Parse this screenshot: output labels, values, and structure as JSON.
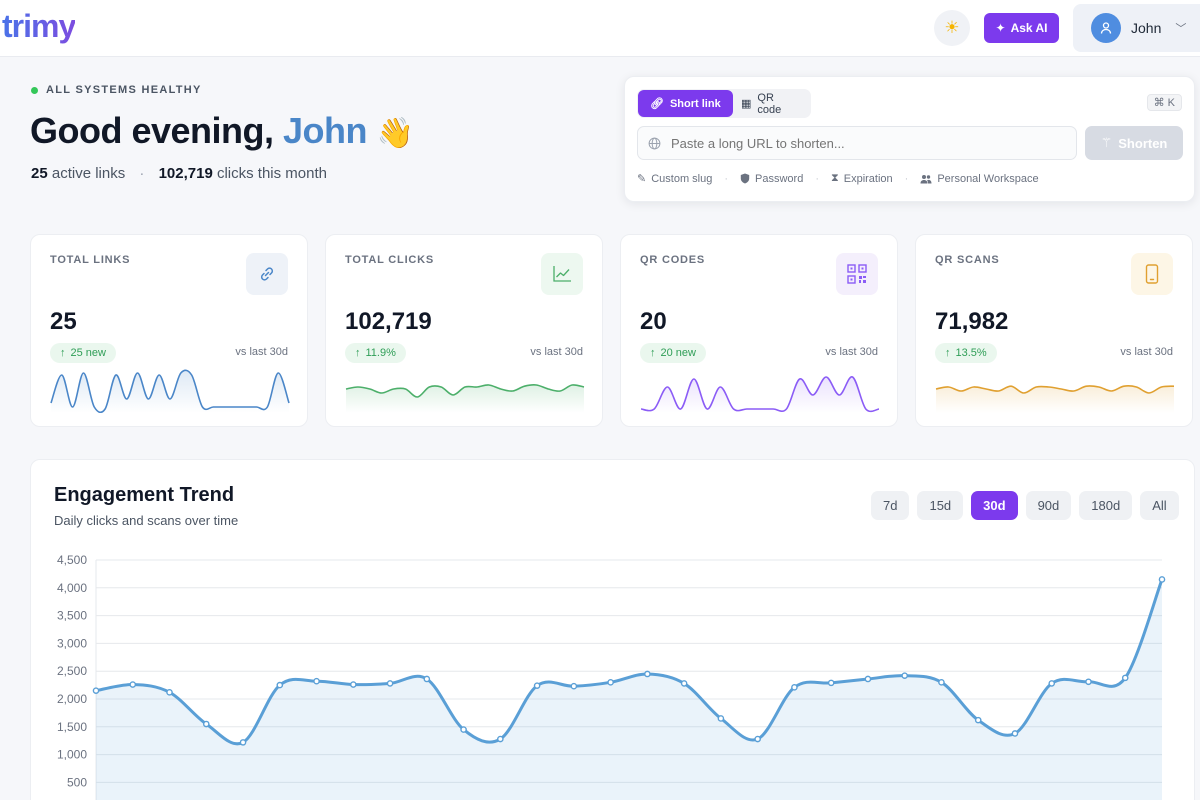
{
  "header": {
    "logo": "trimy",
    "ask_ai_label": "Ask AI",
    "user_name": "John"
  },
  "greeting": {
    "status": "ALL SYSTEMS HEALTHY",
    "prefix": "Good evening,",
    "name": "John",
    "wave": "👋",
    "active_links_count": "25",
    "active_links_label": "active links",
    "separator": "·",
    "clicks_count": "102,719",
    "clicks_label": "clicks this month"
  },
  "shortener": {
    "tabs": [
      {
        "label": "Short link",
        "active": true
      },
      {
        "label": "QR code",
        "active": false
      }
    ],
    "shortcut": "⌘ K",
    "placeholder": "Paste a long URL to shorten...",
    "submit_label": "Shorten",
    "options": [
      {
        "label": "Custom slug",
        "icon": "pencil-icon"
      },
      {
        "label": "Password",
        "icon": "shield-icon"
      },
      {
        "label": "Expiration",
        "icon": "hourglass-icon"
      },
      {
        "label": "Personal Workspace",
        "icon": "users-icon"
      }
    ],
    "option_separator": "·"
  },
  "stats": [
    {
      "label": "TOTAL LINKS",
      "value": "25",
      "delta": "25 new",
      "vs": "vs last 30d",
      "icon": "link-icon",
      "color": "#4a86c8",
      "spark": [
        0.2,
        0.9,
        0.1,
        0.95,
        0.1,
        0.05,
        0.9,
        0.3,
        0.95,
        0.3,
        0.9,
        0.3,
        0.95,
        0.9,
        0.1,
        0.1,
        0.1,
        0.1,
        0.1,
        0.1,
        0.1,
        0.95,
        0.2
      ]
    },
    {
      "label": "TOTAL CLICKS",
      "value": "102,719",
      "delta": "11.9%",
      "vs": "vs last 30d",
      "icon": "chart-line-icon",
      "color": "#4caf6a",
      "spark": [
        0.55,
        0.6,
        0.55,
        0.45,
        0.55,
        0.55,
        0.35,
        0.6,
        0.6,
        0.4,
        0.6,
        0.6,
        0.65,
        0.55,
        0.5,
        0.62,
        0.65,
        0.55,
        0.5,
        0.65,
        0.6
      ]
    },
    {
      "label": "QR CODES",
      "value": "20",
      "delta": "20 new",
      "vs": "vs last 30d",
      "icon": "qr-code-icon",
      "color": "#8b5cf6",
      "spark": [
        0.05,
        0.05,
        0.6,
        0.05,
        0.8,
        0.05,
        0.6,
        0.05,
        0.05,
        0.05,
        0.05,
        0.05,
        0.8,
        0.4,
        0.85,
        0.4,
        0.85,
        0.05,
        0.05
      ]
    },
    {
      "label": "QR SCANS",
      "value": "71,982",
      "delta": "13.5%",
      "vs": "vs last 30d",
      "icon": "smartphone-icon",
      "color": "#e0a030",
      "spark": [
        0.55,
        0.6,
        0.5,
        0.6,
        0.55,
        0.5,
        0.62,
        0.45,
        0.6,
        0.6,
        0.55,
        0.5,
        0.62,
        0.6,
        0.5,
        0.62,
        0.6,
        0.45,
        0.6,
        0.62
      ]
    }
  ],
  "engagement": {
    "title": "Engagement Trend",
    "subtitle": "Daily clicks and scans over time",
    "ranges": [
      {
        "label": "7d",
        "active": false
      },
      {
        "label": "15d",
        "active": false
      },
      {
        "label": "30d",
        "active": true
      },
      {
        "label": "90d",
        "active": false
      },
      {
        "label": "180d",
        "active": false
      },
      {
        "label": "All",
        "active": false
      }
    ]
  },
  "chart_data": {
    "type": "area",
    "title": "Engagement Trend",
    "subtitle": "Daily clicks and scans over time",
    "ylim": [
      0,
      4500
    ],
    "yticks": [
      500,
      1000,
      1500,
      2000,
      2500,
      3000,
      3500,
      4000,
      4500
    ],
    "ytick_labels": [
      "500",
      "1,000",
      "1,500",
      "2,000",
      "2,500",
      "3,000",
      "3,500",
      "4,000",
      "4,500"
    ],
    "grid": true,
    "color": "#5a9fd6",
    "series": [
      {
        "values": [
          2150,
          2260,
          2120,
          1550,
          1220,
          2250,
          2320,
          2260,
          2280,
          2360,
          1450,
          1280,
          2240,
          2230,
          2300,
          2450,
          2280,
          1650,
          1280,
          2210,
          2290,
          2360,
          2420,
          2300,
          1620,
          1380,
          2280,
          2310,
          2380,
          4150
        ]
      }
    ]
  }
}
